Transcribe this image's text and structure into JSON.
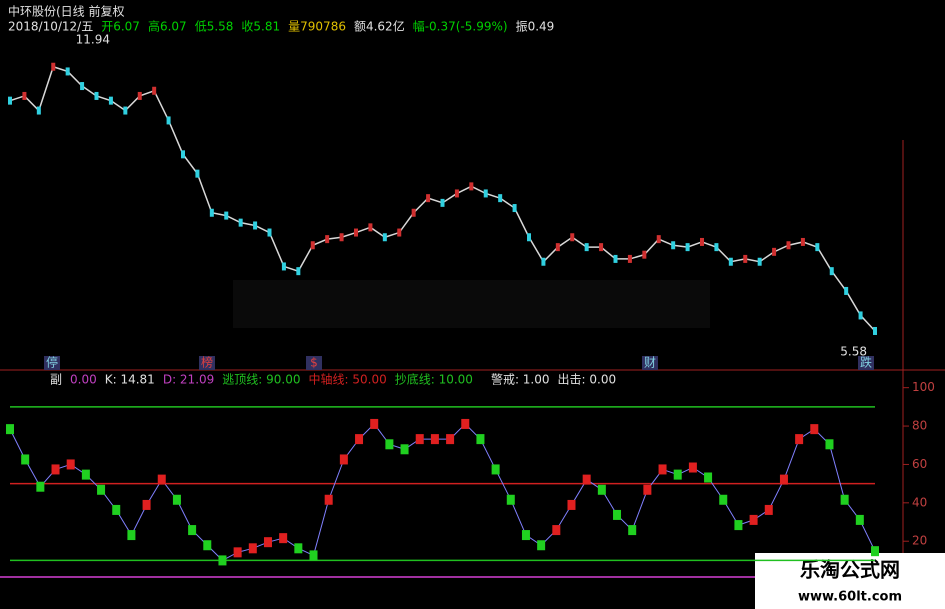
{
  "header": {
    "title": "中环股份(日线 前复权",
    "items": [
      {
        "text": "2018/10/12/五",
        "color": "#e0e0e0"
      },
      {
        "text": "开6.07",
        "color": "#00d000"
      },
      {
        "text": "高6.07",
        "color": "#00d000"
      },
      {
        "text": "低5.58",
        "color": "#00d000"
      },
      {
        "text": "收5.81",
        "color": "#00d000"
      },
      {
        "text": "量790786",
        "color": "#e0c000"
      },
      {
        "text": "额4.62亿",
        "color": "#e0e0e0"
      },
      {
        "text": "幅-0.37(-5.99%)",
        "color": "#00d000"
      },
      {
        "text": "振0.49",
        "color": "#e0e0e0"
      }
    ]
  },
  "chart_data": [
    {
      "type": "line",
      "color": "#d8d8d8",
      "ylim": [
        5.3,
        12.2
      ],
      "annotations": [
        {
          "text": "11.94",
          "value": 11.94,
          "index": 4
        },
        {
          "text": "5.58",
          "value": 5.58,
          "index": 60
        }
      ],
      "markers": [
        "停",
        "榜",
        "$",
        "财",
        "跌"
      ],
      "values": [
        10.7,
        10.8,
        10.49,
        11.42,
        11.32,
        11.01,
        10.8,
        10.7,
        10.49,
        10.8,
        10.91,
        10.28,
        9.56,
        9.15,
        8.32,
        8.26,
        8.11,
        8.05,
        7.9,
        7.18,
        7.08,
        7.63,
        7.76,
        7.8,
        7.9,
        8.01,
        7.8,
        7.9,
        8.32,
        8.63,
        8.53,
        8.73,
        8.88,
        8.73,
        8.63,
        8.42,
        7.8,
        7.28,
        7.59,
        7.8,
        7.59,
        7.59,
        7.34,
        7.34,
        7.43,
        7.76,
        7.63,
        7.59,
        7.7,
        7.59,
        7.28,
        7.34,
        7.28,
        7.49,
        7.63,
        7.7,
        7.59,
        7.08,
        6.66,
        6.14,
        5.81
      ]
    },
    {
      "type": "bar",
      "ylim": [
        5,
        104
      ],
      "yticks": [
        20,
        40,
        60,
        80,
        100
      ],
      "up_color": "#e02020",
      "down_color": "#20d020",
      "items": [
        {
          "text": "副",
          "color": "#e0e0e0"
        },
        {
          "text": "0.00",
          "color": "#c040c0"
        },
        {
          "text": "K: 14.81",
          "color": "#e0e0e0"
        },
        {
          "text": "D: 21.09",
          "color": "#c040c0"
        }
      ],
      "reference_lines": [
        {
          "value": 90,
          "label": "逃顶线: 90.00",
          "color": "#20c020"
        },
        {
          "value": 50,
          "label": "中轴线: 50.00",
          "color": "#d02020"
        },
        {
          "value": 10,
          "label": "抄底线: 10.00",
          "color": "#20c020"
        }
      ],
      "tail_items": [
        {
          "text": "警戒: 1.00",
          "color": "#e0e0e0"
        },
        {
          "text": "出击: 0.00",
          "color": "#e0e0e0"
        }
      ],
      "values": [
        78.4,
        62.6,
        48.4,
        57.4,
        60.0,
        54.7,
        46.8,
        36.3,
        23.2,
        38.9,
        52.1,
        41.6,
        25.8,
        17.9,
        10.0,
        14.2,
        16.3,
        19.5,
        21.6,
        16.3,
        12.6,
        41.6,
        62.6,
        73.2,
        81.1,
        70.5,
        67.9,
        73.2,
        73.2,
        73.2,
        81.1,
        73.2,
        57.4,
        41.6,
        23.2,
        17.9,
        25.8,
        38.9,
        52.1,
        46.8,
        33.7,
        25.8,
        46.8,
        57.4,
        54.7,
        58.4,
        53.2,
        41.6,
        28.4,
        31.1,
        36.3,
        52.1,
        73.2,
        78.4,
        70.5,
        41.6,
        31.1,
        14.81
      ]
    }
  ],
  "watermark": {
    "title": "乐淘公式网",
    "url": "www.60lt.com"
  }
}
